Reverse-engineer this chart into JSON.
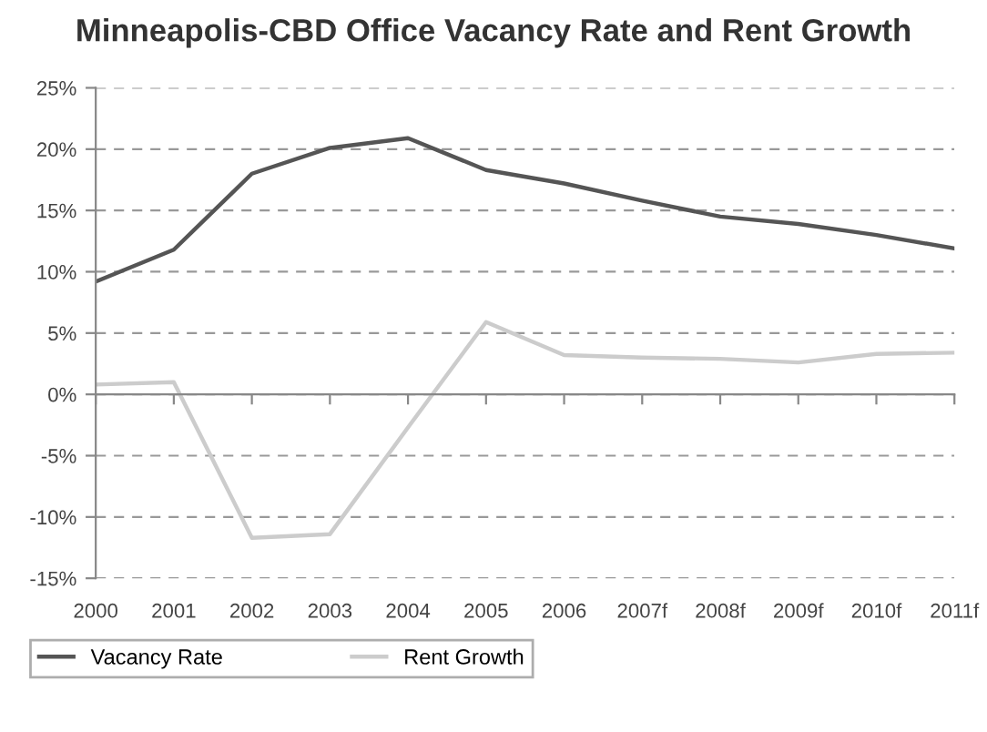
{
  "chart_data": {
    "type": "line",
    "title": "Minneapolis-CBD Office Vacancy Rate and Rent Growth",
    "categories": [
      "2000",
      "2001",
      "2002",
      "2003",
      "2004",
      "2005",
      "2006",
      "2007f",
      "2008f",
      "2009f",
      "2010f",
      "2011f"
    ],
    "series": [
      {
        "name": "Vacancy Rate",
        "color": "#555555",
        "values": [
          9.2,
          11.8,
          18.0,
          20.1,
          20.9,
          18.3,
          17.2,
          15.8,
          14.5,
          13.9,
          13.0,
          11.9
        ]
      },
      {
        "name": "Rent Growth",
        "color": "#cccccc",
        "values": [
          0.8,
          1.0,
          -11.7,
          -11.4,
          -2.7,
          5.9,
          3.2,
          3.0,
          2.9,
          2.6,
          3.3,
          3.4
        ]
      }
    ],
    "ylim": [
      -15,
      25
    ],
    "yticks": [
      {
        "value": -15,
        "label": "-15%"
      },
      {
        "value": -10,
        "label": "-10%"
      },
      {
        "value": -5,
        "label": "-5%"
      },
      {
        "value": 0,
        "label": "0%"
      },
      {
        "value": 5,
        "label": "5%"
      },
      {
        "value": 10,
        "label": "10%"
      },
      {
        "value": 15,
        "label": "15%"
      },
      {
        "value": 20,
        "label": "20%"
      },
      {
        "value": 25,
        "label": "25%"
      }
    ],
    "grid": "y",
    "legend": "bottom",
    "marker": "none",
    "line_style": "solid"
  }
}
